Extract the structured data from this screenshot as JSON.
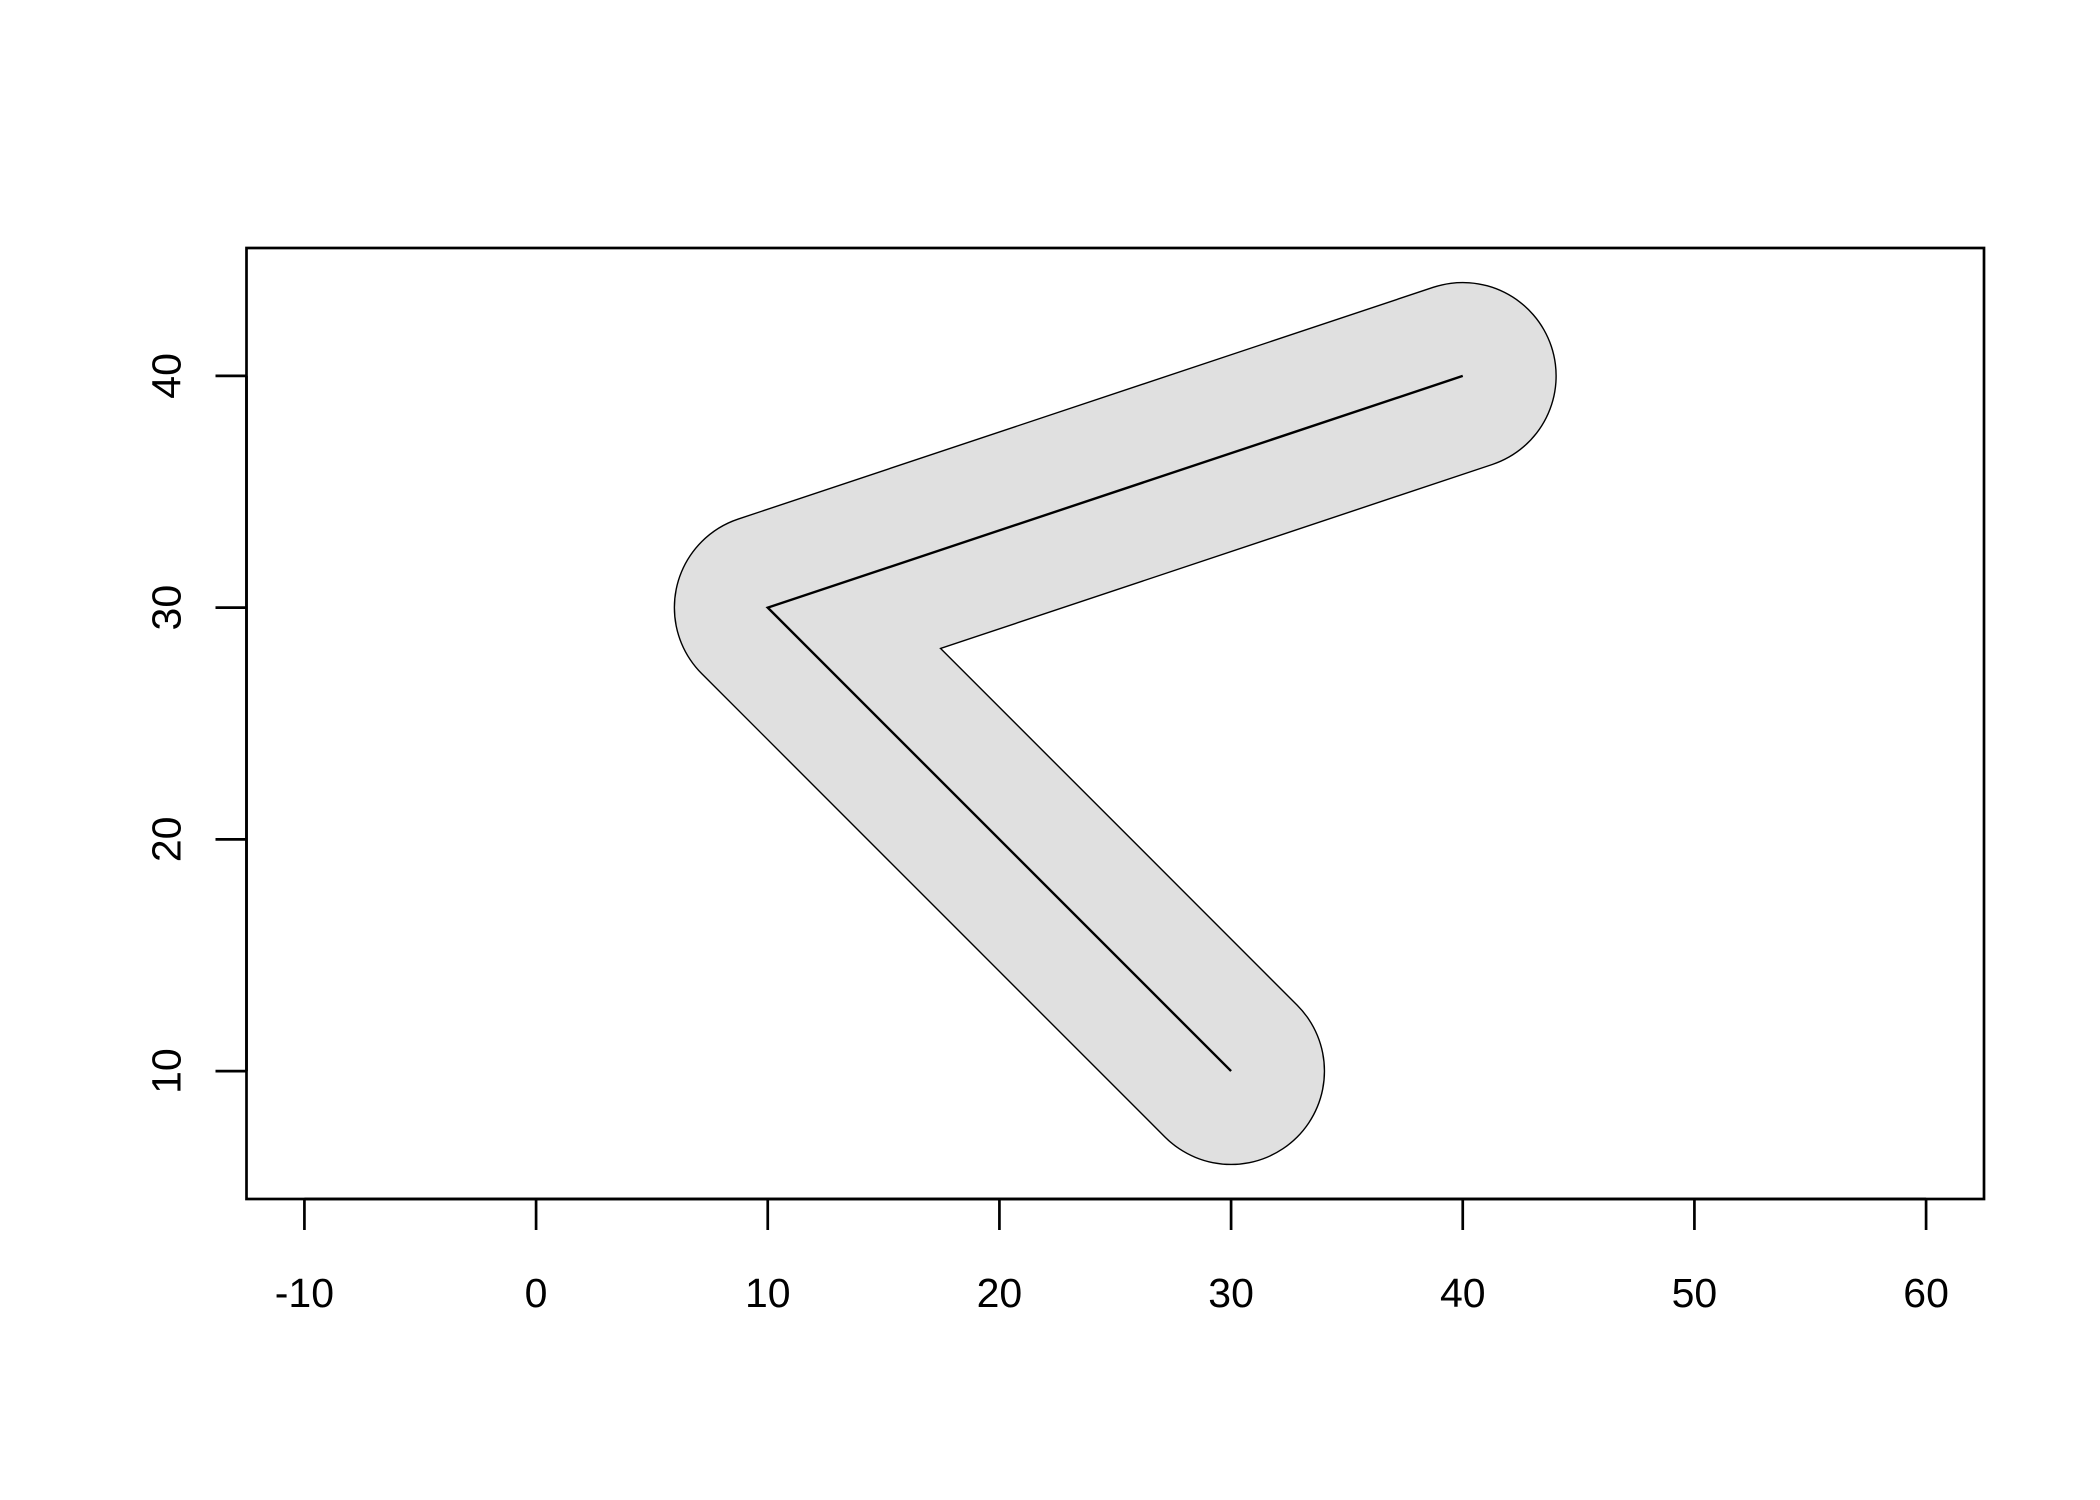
{
  "chart_data": {
    "type": "line",
    "title": "",
    "xlabel": "",
    "ylabel": "",
    "xlim": [
      -12.5,
      62.5
    ],
    "ylim": [
      4.48,
      45.52
    ],
    "aspect": "equal",
    "grid": false,
    "x_ticks": [
      -10,
      0,
      10,
      20,
      30,
      40,
      50,
      60
    ],
    "x_tick_labels": [
      "-10",
      "0",
      "10",
      "20",
      "30",
      "40",
      "50",
      "60"
    ],
    "y_ticks": [
      10,
      20,
      30,
      40
    ],
    "y_tick_labels": [
      "10",
      "20",
      "30",
      "40"
    ],
    "series": [
      {
        "x": [
          30,
          10,
          40
        ],
        "y": [
          10,
          30,
          40
        ],
        "buffer_distance": 4,
        "buffer_fill": "#e0e0e0",
        "buffer_outline": "#000000",
        "line_color": "#000000"
      }
    ]
  }
}
